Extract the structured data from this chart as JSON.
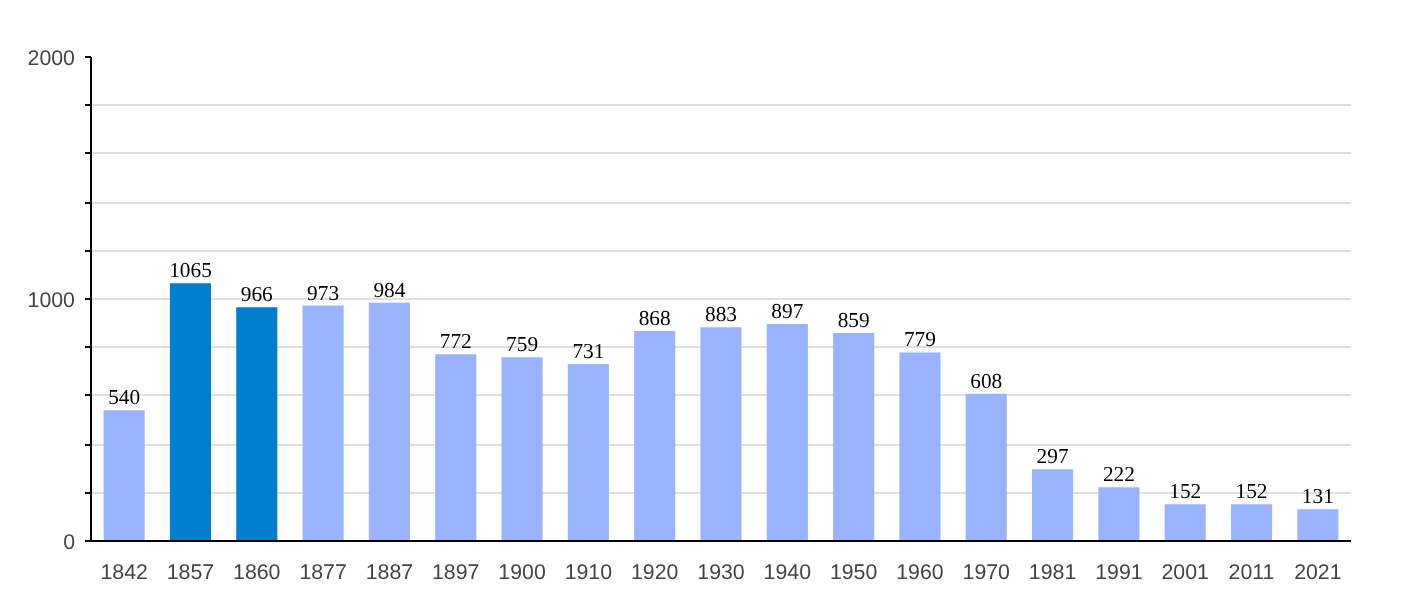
{
  "chart_data": {
    "type": "bar",
    "categories": [
      "1842",
      "1857",
      "1860",
      "1877",
      "1887",
      "1897",
      "1900",
      "1910",
      "1920",
      "1930",
      "1940",
      "1950",
      "1960",
      "1970",
      "1981",
      "1991",
      "2001",
      "2011",
      "2021"
    ],
    "values": [
      540,
      1065,
      966,
      973,
      984,
      772,
      759,
      731,
      868,
      883,
      897,
      859,
      779,
      608,
      297,
      222,
      152,
      152,
      131
    ],
    "colors": [
      "#99b3ff",
      "#007fcf",
      "#007fcf",
      "#99b3ff",
      "#99b3ff",
      "#99b3ff",
      "#99b3ff",
      "#99b3ff",
      "#99b3ff",
      "#99b3ff",
      "#99b3ff",
      "#99b3ff",
      "#99b3ff",
      "#99b3ff",
      "#99b3ff",
      "#99b3ff",
      "#99b3ff",
      "#99b3ff",
      "#99b3ff"
    ],
    "ylim": [
      0,
      2000
    ],
    "yticks": [
      0,
      {
        "value": 200,
        "label": null
      },
      {
        "value": 400,
        "label": null
      },
      {
        "value": 600,
        "label": null
      },
      {
        "value": 800,
        "label": null
      },
      1000,
      {
        "value": 1200,
        "label": null
      },
      {
        "value": 1400,
        "label": null
      },
      {
        "value": 1600,
        "label": null
      },
      {
        "value": 1800,
        "label": null
      },
      2000
    ],
    "grid": "y",
    "data_labels": true
  }
}
